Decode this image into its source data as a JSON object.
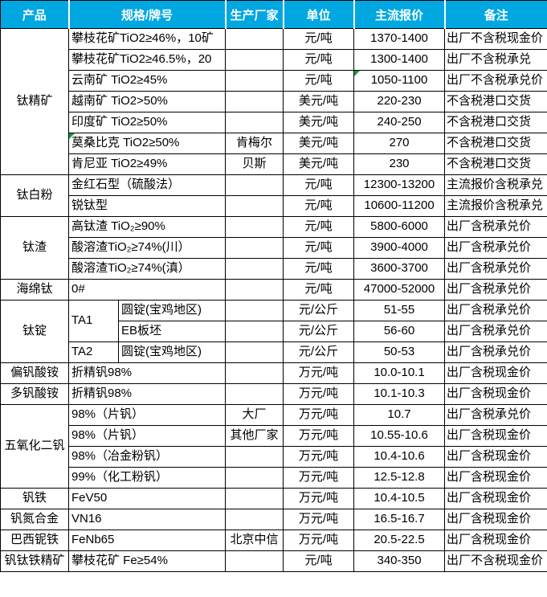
{
  "table": {
    "columns": {
      "product": "产品",
      "spec": "规格/牌号",
      "manufacturer": "生产厂家",
      "unit": "单位",
      "price": "主流报价",
      "note": "备注"
    },
    "rows": [
      {
        "product": "钛精矿",
        "prodspan": 7,
        "spec": "攀枝花矿TiO2≥46%，10矿",
        "mfr": "",
        "unit": "元/吨",
        "price": "1370-1400",
        "note": "出厂不含税现金价"
      },
      {
        "spec": "攀枝花矿TiO2≥46.5%，20",
        "mfr": "",
        "unit": "元/吨",
        "price": "1300-1400",
        "note": "出厂不含税承兑"
      },
      {
        "spec": "云南矿 TiO2≥45%",
        "mfr": "",
        "unit": "元/吨",
        "price": "1050-1100",
        "note": "出厂不含税承兑价",
        "price_marker": true
      },
      {
        "spec": "越南矿 TiO2>50%",
        "mfr": "",
        "unit": "美元/吨",
        "price": "220-230",
        "note": "不含税港口交货"
      },
      {
        "spec": "印度矿 TiO2≥50%",
        "mfr": "",
        "unit": "美元/吨",
        "price": "240-250",
        "note": "不含税港口交货"
      },
      {
        "spec": "莫桑比克 TiO2≥50%",
        "spec_marker": true,
        "mfr": "肯梅尔",
        "unit": "美元/吨",
        "price": "270",
        "note": "不含税港口交货"
      },
      {
        "spec": "肯尼亚 TiO2≥49%",
        "mfr": "贝斯",
        "unit": "美元/吨",
        "price": "230",
        "note": "不含税港口交货"
      },
      {
        "product": "钛白粉",
        "prodspan": 2,
        "spec": "金红石型（硫酸法）",
        "mfr": "",
        "unit": "元/吨",
        "price": "12300-13200",
        "note": "主流报价含税承兑"
      },
      {
        "spec": "锐钛型",
        "mfr": "",
        "unit": "元/吨",
        "price": "10600-11200",
        "note": "主流报价含税承兑"
      },
      {
        "product": "钛渣",
        "prodspan": 3,
        "spec": "高钛渣 TiO₂≥90%",
        "mfr": "",
        "unit": "元/吨",
        "price": "5800-6000",
        "note": "出厂含税承兑价"
      },
      {
        "spec": "酸溶渣TiO₂≥74%(川）",
        "mfr": "",
        "unit": "元/吨",
        "price": "3900-4000",
        "note": "出厂含税承兑价"
      },
      {
        "spec": "酸溶渣TiO₂≥74%(滇）",
        "mfr": "",
        "unit": "元/吨",
        "price": "3600-3700",
        "note": "出厂含税承兑价"
      },
      {
        "product": "海绵钛",
        "prodspan": 1,
        "spec": "0#",
        "mfr": "",
        "unit": "元/吨",
        "price": "47000-52000",
        "note": "出厂含税承兑价"
      },
      {
        "product": "钛锭",
        "prodspan": 3,
        "speca": "TA1",
        "speca_span": 2,
        "specb": "圆锭(宝鸡地区)",
        "mfr": "",
        "unit": "元/公斤",
        "price": "51-55",
        "note": "出厂含税承兑价"
      },
      {
        "specb": "EB板坯",
        "mfr": "",
        "unit": "元/公斤",
        "price": "56-60",
        "note": "出厂含税承兑价"
      },
      {
        "speca": "TA2",
        "speca_span": 1,
        "specb": "圆锭(宝鸡地区)",
        "mfr": "",
        "unit": "元/公斤",
        "price": "50-53",
        "note": "出厂含税承兑价"
      },
      {
        "product": "偏钒酸铵",
        "prodspan": 1,
        "spec": "折精钒98%",
        "mfr": "",
        "unit": "万元/吨",
        "price": "10.0-10.1",
        "note": "出厂含税现金价"
      },
      {
        "product": "多钒酸铵",
        "prodspan": 1,
        "spec": "折精钒98%",
        "mfr": "",
        "unit": "万元/吨",
        "price": "10.1-10.3",
        "note": "出厂含税现金价"
      },
      {
        "product": "五氧化二钒",
        "prodspan": 4,
        "spec": "98%（片钒）",
        "mfr": "大厂",
        "unit": "万元/吨",
        "price": "10.7",
        "note": "出厂含税承兑价"
      },
      {
        "spec": "98%（片钒）",
        "mfr": "其他厂家",
        "unit": "万元/吨",
        "price": "10.55-10.6",
        "note": "出厂含税现金价"
      },
      {
        "spec": "98%（冶金粉钒）",
        "mfr": "",
        "unit": "万元/吨",
        "price": "10.4-10.6",
        "note": "出厂含税现金价"
      },
      {
        "spec": "99%（化工粉钒）",
        "mfr": "",
        "unit": "万元/吨",
        "price": "12.5-12.8",
        "note": "出厂含税现金价"
      },
      {
        "product": "钒铁",
        "prodspan": 1,
        "spec": "FeV50",
        "mfr": "",
        "unit": "万元/吨",
        "price": "10.4-10.5",
        "note": "出厂含税现金价"
      },
      {
        "product": "钒氮合金",
        "prodspan": 1,
        "spec": "VN16",
        "mfr": "",
        "unit": "万元/吨",
        "price": "16.5-16.7",
        "note": "出厂含税现金价"
      },
      {
        "product": "巴西铌铁",
        "prodspan": 1,
        "spec": "FeNb65",
        "mfr": "北京中信",
        "unit": "万元/吨",
        "price": "20.5-22.5",
        "note": "出厂含税现金价"
      },
      {
        "product": "钒钛铁精矿",
        "prodspan": 1,
        "spec": "攀枝花矿 Fe≥54%",
        "mfr": "",
        "unit": "元/吨",
        "price": "340-350",
        "note": "出厂不含税现金价"
      }
    ]
  },
  "colors": {
    "header_bg": "#00A7E1",
    "header_text": "#FFFFFF",
    "marker_green": "#0E9D3C",
    "body_text": "#000000"
  }
}
